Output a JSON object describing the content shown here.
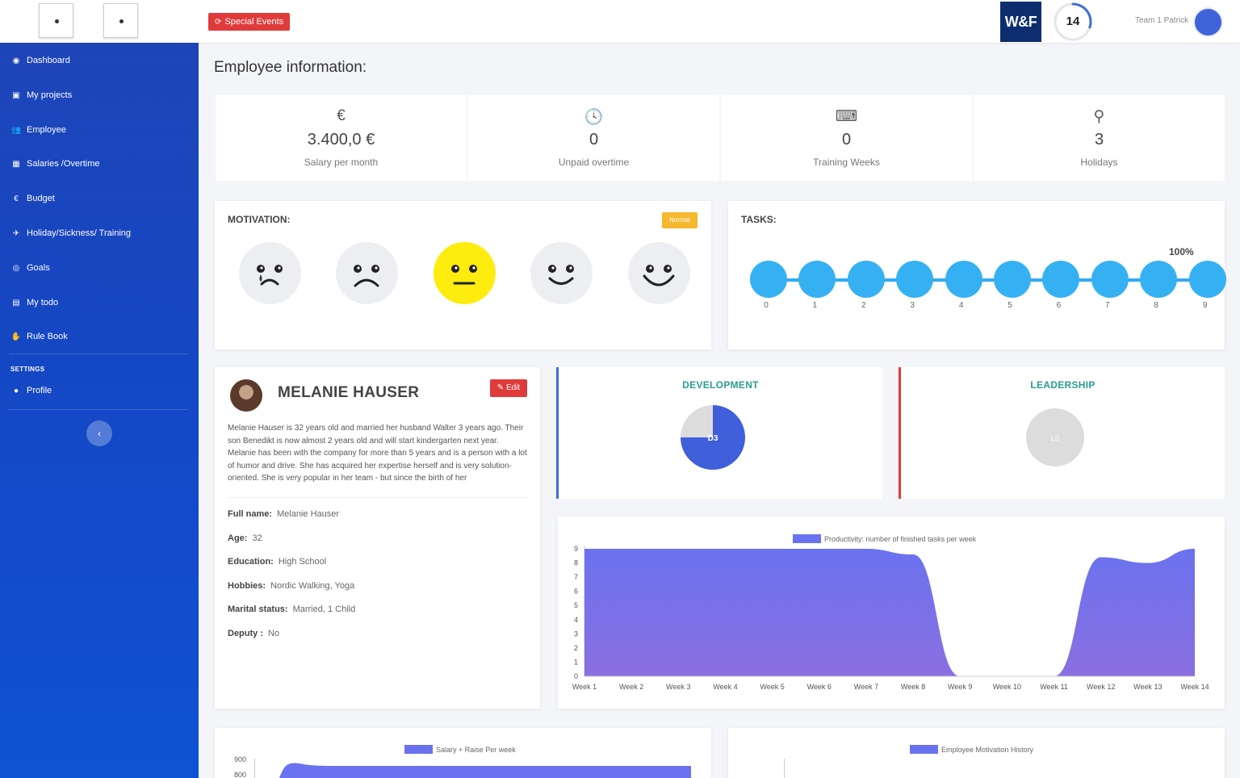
{
  "topbar": {
    "special_events_label": "Special Events",
    "logo_text": "W&F",
    "badge_number": "14",
    "badge_progress": 0.3,
    "user_label": "Team 1 Patrick"
  },
  "sidebar": {
    "items": [
      {
        "label": "Dashboard",
        "icon": "dashboard-icon",
        "glyph": "◉"
      },
      {
        "label": "My projects",
        "icon": "briefcase-icon",
        "glyph": "▣"
      },
      {
        "label": "Employee",
        "icon": "users-icon",
        "glyph": "👥"
      },
      {
        "label": "Salaries /Overtime",
        "icon": "table-icon",
        "glyph": "▦"
      },
      {
        "label": "Budget",
        "icon": "euro-icon",
        "glyph": "€"
      },
      {
        "label": "Holiday/Sickness/ Training",
        "icon": "plane-icon",
        "glyph": "✈"
      },
      {
        "label": "Goals",
        "icon": "target-icon",
        "glyph": "◎"
      },
      {
        "label": "My todo",
        "icon": "calendar-icon",
        "glyph": "▤"
      },
      {
        "label": "Rule Book",
        "icon": "handshake-icon",
        "glyph": "✋"
      }
    ],
    "settings_label": "SETTINGS",
    "profile_label": "Profile",
    "collapse_glyph": "‹"
  },
  "main": {
    "title": "Employee information:",
    "stats": [
      {
        "icon": "euro-icon",
        "glyph": "€",
        "value": "3.400,0 €",
        "label": "Salary per month"
      },
      {
        "icon": "clock-icon",
        "glyph": "🕓",
        "value": "0",
        "label": "Unpaid overtime"
      },
      {
        "icon": "teacher-icon",
        "glyph": "⌨",
        "value": "0",
        "label": "Training Weeks"
      },
      {
        "icon": "binoculars-icon",
        "glyph": "⚲",
        "value": "3",
        "label": "Holidays"
      }
    ],
    "motivation": {
      "label": "MOTIVATION:",
      "badge": "Normal",
      "selected_index": 2
    },
    "tasks": {
      "label": "TASKS:",
      "percent": "100%",
      "steps": [
        "0",
        "1",
        "2",
        "3",
        "4",
        "5",
        "6",
        "7",
        "8",
        "9"
      ]
    },
    "profile": {
      "name": "MELANIE HAUSER",
      "edit_label": "Edit",
      "bio": "Melanie Hauser is 32 years old and married her husband Walter 3 years ago. Their son Benedikt is now almost 2 years old and will start kindergarten next year. Melanie has been with the company for more than 5 years and is a person with a lot of humor and drive. She has acquired her expertise herself and is very solution-oriented. She is very popular in her team - but since the birth of her",
      "fields": [
        {
          "label": "Full name:",
          "value": "Melanie Hauser"
        },
        {
          "label": "Age:",
          "value": "32"
        },
        {
          "label": "Education:",
          "value": "High School"
        },
        {
          "label": "Hobbies:",
          "value": "Nordic Walking, Yoga"
        },
        {
          "label": "Marital status:",
          "value": "Married, 1 Child"
        },
        {
          "label": "Deputy :",
          "value": "No"
        }
      ]
    },
    "development": {
      "title": "DEVELOPMENT",
      "level_label": "D3",
      "fraction": 0.75
    },
    "leadership": {
      "title": "LEADERSHIP",
      "level_label": "L0",
      "fraction": 0
    }
  },
  "chart_data": [
    {
      "type": "area",
      "legend": "Productivity: number of finished tasks per week",
      "categories": [
        "Week 1",
        "Week 2",
        "Week 3",
        "Week 4",
        "Week 5",
        "Week 6",
        "Week 7",
        "Week 8",
        "Week 9",
        "Week 10",
        "Week 11",
        "Week 12",
        "Week 13",
        "Week 14"
      ],
      "values": [
        9,
        9,
        9,
        9,
        9,
        9,
        9,
        8.6,
        0,
        0,
        0,
        8.4,
        8,
        9
      ],
      "ylim": [
        0,
        9
      ],
      "yticks": [
        "0",
        "1",
        "2",
        "3",
        "4",
        "5",
        "6",
        "7",
        "8",
        "9"
      ],
      "color": "#6b72ef"
    },
    {
      "type": "area",
      "legend": "Salary + Raise Per week",
      "yticks": [
        "900",
        "800"
      ],
      "color": "#6b72ef"
    },
    {
      "type": "line",
      "legend": "Employee Motivation History",
      "color": "#6b72ef"
    }
  ]
}
